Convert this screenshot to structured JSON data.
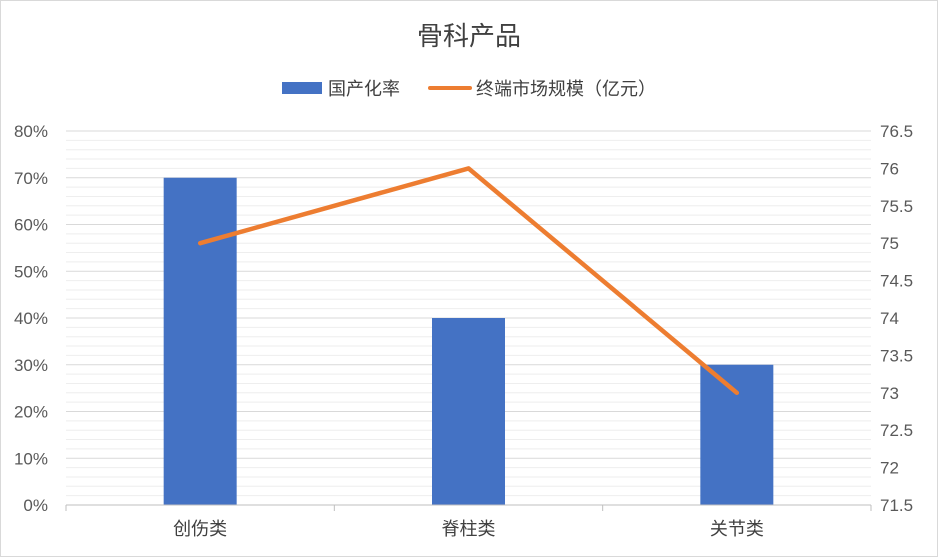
{
  "chart_data": {
    "type": "bar",
    "title": "骨科产品",
    "categories": [
      "创伤类",
      "脊柱类",
      "关节类"
    ],
    "series": [
      {
        "name": "国产化率",
        "type": "bar",
        "axis": "left",
        "values": [
          0.7,
          0.4,
          0.3
        ],
        "color": "#4472c4"
      },
      {
        "name": "终端市场规模（亿元）",
        "type": "line",
        "axis": "right",
        "values": [
          75,
          76,
          73
        ],
        "color": "#ed7d31"
      }
    ],
    "y_left": {
      "ylim": [
        0,
        0.8
      ],
      "ticks": [
        0,
        0.1,
        0.2,
        0.3,
        0.4,
        0.5,
        0.6,
        0.7,
        0.8
      ],
      "tick_labels": [
        "0%",
        "10%",
        "20%",
        "30%",
        "40%",
        "50%",
        "60%",
        "70%",
        "80%"
      ]
    },
    "y_right": {
      "ylim": [
        71.5,
        76.5
      ],
      "ticks": [
        71.5,
        72,
        72.5,
        73,
        73.5,
        74,
        74.5,
        75,
        75.5,
        76,
        76.5
      ],
      "tick_labels": [
        "71.5",
        "72",
        "72.5",
        "73",
        "73.5",
        "74",
        "74.5",
        "75",
        "75.5",
        "76",
        "76.5"
      ]
    },
    "legend_position": "top",
    "grid": true
  }
}
